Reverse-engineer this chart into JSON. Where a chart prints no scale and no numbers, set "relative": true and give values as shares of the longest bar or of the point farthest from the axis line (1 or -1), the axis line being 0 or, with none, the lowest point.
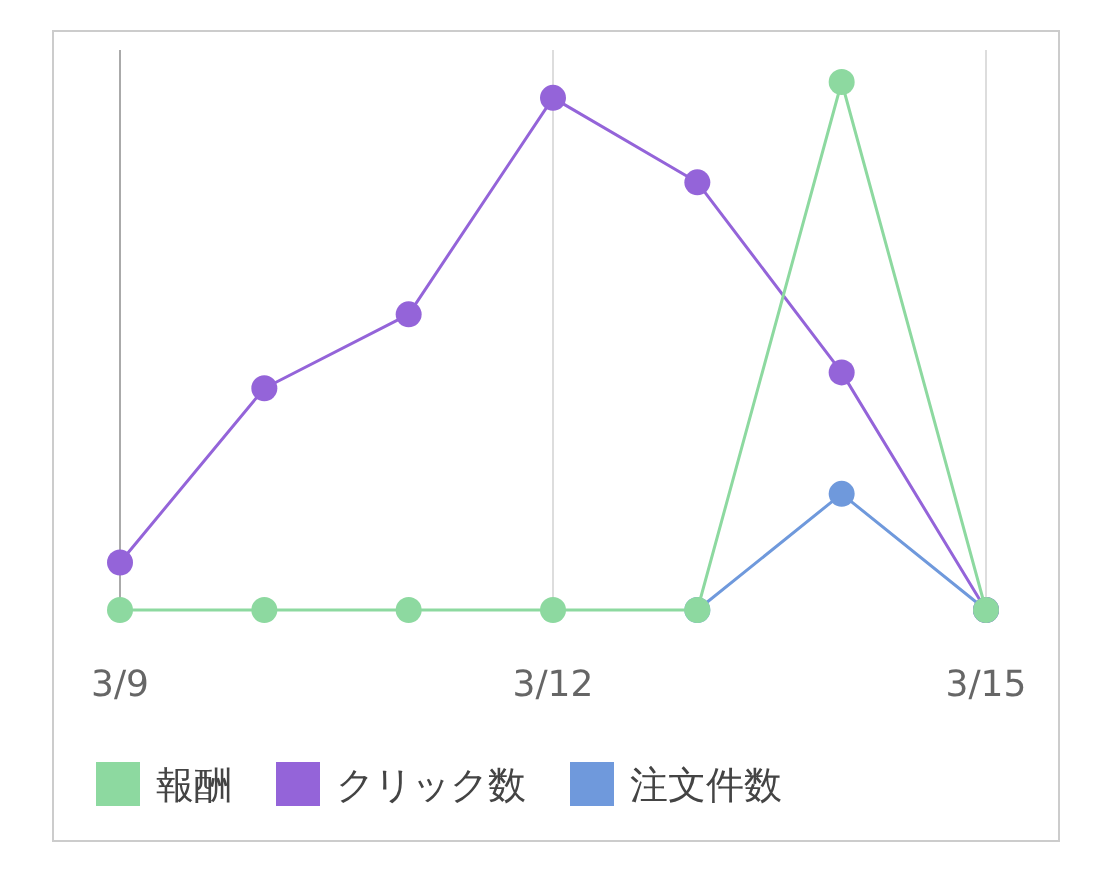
{
  "chart_data": {
    "type": "line",
    "relative": true,
    "x": [
      "--03-09",
      "--03-10",
      "--03-11",
      "--03-12",
      "--03-13",
      "--03-14",
      "--03-15"
    ],
    "xlim": [
      "--03-09",
      "--03-15"
    ],
    "xticks": [
      {
        "value": "--03-09",
        "label": "3/9"
      },
      {
        "value": "--03-12",
        "label": "3/12"
      },
      {
        "value": "--03-15",
        "label": "3/15"
      }
    ],
    "grid": "x",
    "legend": "bottom",
    "marker": "circle",
    "line_style": "solid",
    "series": [
      {
        "name": "報酬",
        "color": "#8dd9a0",
        "values": [
          0,
          0,
          0,
          0,
          0,
          1,
          0
        ]
      },
      {
        "name": "クリック数",
        "color": "#9464d9",
        "values": [
          0.09,
          0.42,
          0.56,
          0.97,
          0.81,
          0.45,
          0
        ]
      },
      {
        "name": "注文件数",
        "color": "#6f99dc",
        "values": [
          null,
          null,
          null,
          null,
          0,
          0.22,
          0
        ]
      }
    ]
  }
}
